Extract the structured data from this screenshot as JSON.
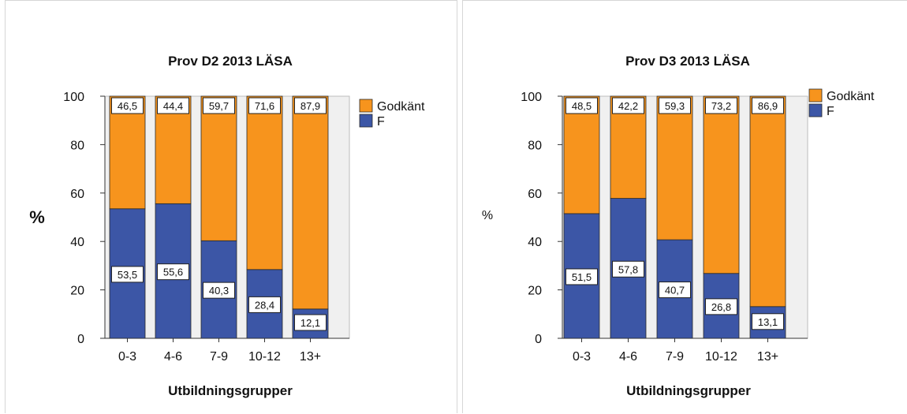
{
  "colors": {
    "godkant": "#f7941d",
    "f": "#3c56a6",
    "plot_bg": "#f0f0f0"
  },
  "chart_data": [
    {
      "type": "bar",
      "stacked": true,
      "title": "Prov D2 2013 LÄSA",
      "xlabel": "Utbildningsgrupper",
      "ylabel": "%",
      "ylim": [
        0,
        100
      ],
      "yticks": [
        "0",
        "20",
        "40",
        "60",
        "80",
        "100"
      ],
      "categories": [
        "0-3",
        "4-6",
        "7-9",
        "10-12",
        "13+"
      ],
      "legend": [
        "Godkänt",
        "F"
      ],
      "legend_position": "right",
      "series": [
        {
          "name": "F",
          "values": [
            53.5,
            55.6,
            40.3,
            28.4,
            12.1
          ],
          "labels": [
            "53,5",
            "55,6",
            "40,3",
            "28,4",
            "12,1"
          ]
        },
        {
          "name": "Godkänt",
          "values": [
            46.5,
            44.4,
            59.7,
            71.6,
            87.9
          ],
          "labels": [
            "46,5",
            "44,4",
            "59,7",
            "71,6",
            "87,9"
          ]
        }
      ]
    },
    {
      "type": "bar",
      "stacked": true,
      "title": "Prov D3 2013 LÄSA",
      "xlabel": "Utbildningsgrupper",
      "ylabel": "%",
      "ylim": [
        0,
        100
      ],
      "yticks": [
        "0",
        "20",
        "40",
        "60",
        "80",
        "100"
      ],
      "categories": [
        "0-3",
        "4-6",
        "7-9",
        "10-12",
        "13+"
      ],
      "legend": [
        "Godkänt",
        "F"
      ],
      "legend_position": "top-right",
      "series": [
        {
          "name": "F",
          "values": [
            51.5,
            57.8,
            40.7,
            26.8,
            13.1
          ],
          "labels": [
            "51,5",
            "57,8",
            "40,7",
            "26,8",
            "13,1"
          ]
        },
        {
          "name": "Godkänt",
          "values": [
            48.5,
            42.2,
            59.3,
            73.2,
            86.9
          ],
          "labels": [
            "48,5",
            "42,2",
            "59,3",
            "73,2",
            "86,9"
          ]
        }
      ]
    }
  ]
}
